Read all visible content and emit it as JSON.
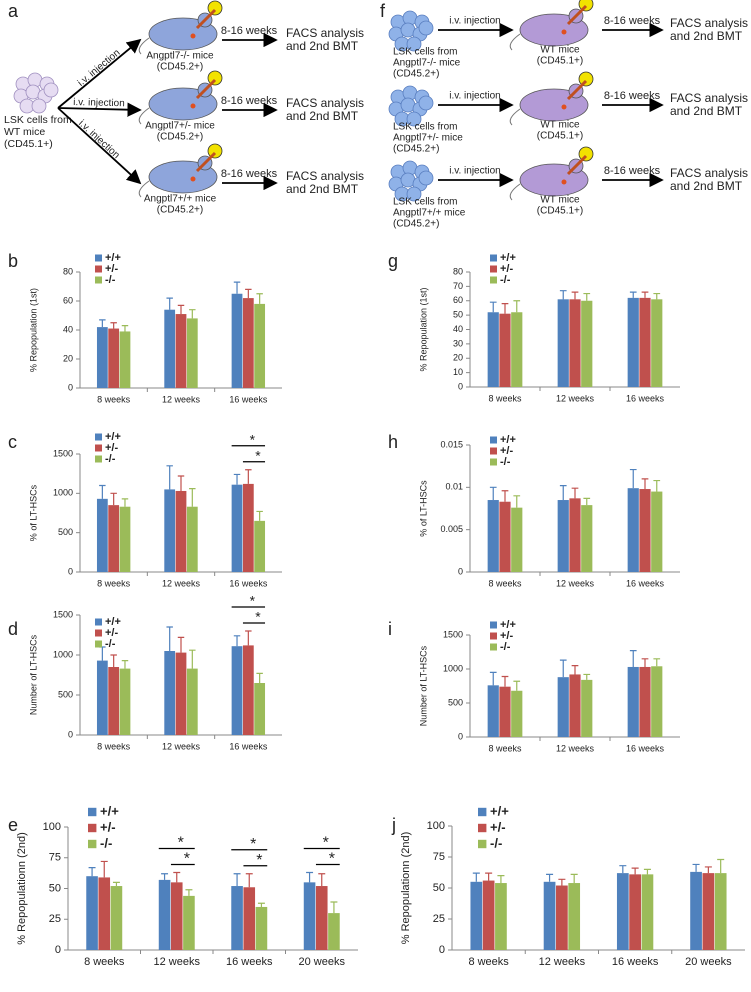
{
  "diagrams": [
    {
      "label": "a",
      "source": [
        "LSK cells from",
        "WT mice",
        "(CD45.1+)"
      ],
      "branches": [
        {
          "route": "i.v. injection",
          "recipient": [
            "Angptl7-/- mice",
            "(CD45.2+)"
          ],
          "time": "8-16 weeks",
          "outcome": [
            "FACS analysis",
            "and 2nd BMT"
          ]
        },
        {
          "route": "i.v. injection",
          "recipient": [
            "Angptl7+/- mice",
            "(CD45.2+)"
          ],
          "time": "8-16 weeks",
          "outcome": [
            "FACS analysis",
            "and 2nd BMT"
          ]
        },
        {
          "route": "i.v. injection",
          "recipient": [
            "Angptl7+/+ mice",
            "(CD45.2+)"
          ],
          "time": "8-16 weeks",
          "outcome": [
            "FACS analysis",
            "and 2nd BMT"
          ]
        }
      ]
    },
    {
      "label": "f",
      "rows": [
        {
          "source": [
            "LSK cells from",
            "Angptl7-/- mice",
            "(CD45.2+)"
          ],
          "route": "i.v. injection",
          "recipient": [
            "WT mice",
            "(CD45.1+)"
          ],
          "time": "8-16 weeks",
          "outcome": [
            "FACS analysis",
            "and 2nd BMT"
          ]
        },
        {
          "source": [
            "LSK cells from",
            "Angptl7+/- mice",
            "(CD45.2+)"
          ],
          "route": "i.v. injection",
          "recipient": [
            "WT mice",
            "(CD45.1+)"
          ],
          "time": "8-16 weeks",
          "outcome": [
            "FACS analysis",
            "and 2nd BMT"
          ]
        },
        {
          "source": [
            "LSK cells from",
            "Angptl7+/+ mice",
            "(CD45.2+)"
          ],
          "route": "i.v. injection",
          "recipient": [
            "WT mice",
            "(CD45.1+)"
          ],
          "time": "8-16 weeks",
          "outcome": [
            "FACS analysis",
            "and 2nd BMT"
          ]
        }
      ]
    }
  ],
  "chart_data": [
    {
      "type": "bar",
      "panel_label": "b",
      "y_label": "% Repopulation (1st)",
      "categories": [
        "8 weeks",
        "12 weeks",
        "16 weeks"
      ],
      "ylim": [
        0,
        80
      ],
      "yticks": [
        0,
        20,
        40,
        60,
        80
      ],
      "series": [
        {
          "name": "+/+",
          "color": "#4f81bd",
          "values": [
            42,
            54,
            65
          ],
          "errors": [
            5,
            8,
            8
          ]
        },
        {
          "name": "+/-",
          "color": "#c0504d",
          "values": [
            41,
            51,
            62
          ],
          "errors": [
            4,
            6,
            6
          ]
        },
        {
          "name": "-/-",
          "color": "#9bbb59",
          "values": [
            39,
            48,
            58
          ],
          "errors": [
            4,
            6,
            7
          ]
        }
      ]
    },
    {
      "type": "bar",
      "panel_label": "c",
      "y_label": "% of LT-HSCs",
      "categories": [
        "8 weeks",
        "12 weeks",
        "16 weeks"
      ],
      "ylim": [
        0,
        1500
      ],
      "yticks": [
        0,
        500,
        1000,
        1500
      ],
      "series": [
        {
          "name": "+/+",
          "color": "#4f81bd",
          "values": [
            930,
            1050,
            1110
          ],
          "errors": [
            170,
            300,
            130
          ]
        },
        {
          "name": "+/-",
          "color": "#c0504d",
          "values": [
            850,
            1030,
            1120
          ],
          "errors": [
            150,
            190,
            180
          ]
        },
        {
          "name": "-/-",
          "color": "#9bbb59",
          "values": [
            830,
            830,
            650
          ],
          "errors": [
            100,
            230,
            120
          ]
        }
      ],
      "significance": [
        {
          "category": "16 weeks",
          "from": "+/-",
          "to": "-/-",
          "label": "*"
        },
        {
          "category": "16 weeks",
          "from": "+/+",
          "to": "-/-",
          "label": "*"
        }
      ]
    },
    {
      "type": "bar",
      "panel_label": "d",
      "y_label": "Number of LT-HSCs",
      "categories": [
        "8 weeks",
        "12 weeks",
        "16 weeks"
      ],
      "ylim": [
        0,
        1500
      ],
      "yticks": [
        0,
        500,
        1000,
        1500
      ],
      "series": [
        {
          "name": "+/+",
          "color": "#4f81bd",
          "values": [
            930,
            1050,
            1110
          ],
          "errors": [
            170,
            300,
            130
          ]
        },
        {
          "name": "+/-",
          "color": "#c0504d",
          "values": [
            850,
            1030,
            1120
          ],
          "errors": [
            150,
            190,
            180
          ]
        },
        {
          "name": "-/-",
          "color": "#9bbb59",
          "values": [
            830,
            830,
            650
          ],
          "errors": [
            100,
            230,
            120
          ]
        }
      ],
      "significance": [
        {
          "category": "16 weeks",
          "from": "+/-",
          "to": "-/-",
          "label": "*"
        },
        {
          "category": "16 weeks",
          "from": "+/+",
          "to": "-/-",
          "label": "*"
        }
      ]
    },
    {
      "type": "bar",
      "panel_label": "e",
      "y_label": "% Repopulationn (2nd)",
      "categories": [
        "8 weeks",
        "12 weeks",
        "16 weeks",
        "20 weeks"
      ],
      "ylim": [
        0,
        100
      ],
      "yticks": [
        0,
        25,
        50,
        75,
        100
      ],
      "series": [
        {
          "name": "+/+",
          "color": "#4f81bd",
          "values": [
            60,
            57,
            52,
            55
          ],
          "errors": [
            7,
            5,
            10,
            8
          ]
        },
        {
          "name": "+/-",
          "color": "#c0504d",
          "values": [
            59,
            55,
            51,
            52
          ],
          "errors": [
            13,
            8,
            11,
            10
          ]
        },
        {
          "name": "-/-",
          "color": "#9bbb59",
          "values": [
            52,
            44,
            35,
            30
          ],
          "errors": [
            3,
            5,
            3,
            9
          ]
        }
      ],
      "significance": [
        {
          "category": "12 weeks",
          "from": "+/-",
          "to": "-/-",
          "label": "*"
        },
        {
          "category": "12 weeks",
          "from": "+/+",
          "to": "-/-",
          "label": "*"
        },
        {
          "category": "16 weeks",
          "from": "+/-",
          "to": "-/-",
          "label": "*"
        },
        {
          "category": "16 weeks",
          "from": "+/+",
          "to": "-/-",
          "label": "*"
        },
        {
          "category": "20 weeks",
          "from": "+/-",
          "to": "-/-",
          "label": "*"
        },
        {
          "category": "20 weeks",
          "from": "+/+",
          "to": "-/-",
          "label": "*"
        }
      ]
    },
    {
      "type": "bar",
      "panel_label": "g",
      "y_label": "% Repopulation (1st)",
      "categories": [
        "8 weeks",
        "12 weeks",
        "16 weeks"
      ],
      "ylim": [
        0,
        80
      ],
      "yticks": [
        0,
        10,
        20,
        30,
        40,
        50,
        60,
        70,
        80
      ],
      "series": [
        {
          "name": "+/+",
          "color": "#4f81bd",
          "values": [
            52,
            61,
            62
          ],
          "errors": [
            7,
            6,
            4
          ]
        },
        {
          "name": "+/-",
          "color": "#c0504d",
          "values": [
            51,
            61,
            62
          ],
          "errors": [
            7,
            5,
            4
          ]
        },
        {
          "name": "-/-",
          "color": "#9bbb59",
          "values": [
            52,
            60,
            61
          ],
          "errors": [
            8,
            5,
            4
          ]
        }
      ]
    },
    {
      "type": "bar",
      "panel_label": "h",
      "y_label": "% of LT-HSCs",
      "categories": [
        "8 weeks",
        "12 weeks",
        "16 weeks"
      ],
      "ylim": [
        0,
        0.015
      ],
      "yticks": [
        0,
        0.005,
        0.01,
        0.015
      ],
      "series": [
        {
          "name": "+/+",
          "color": "#4f81bd",
          "values": [
            0.0085,
            0.0085,
            0.0099
          ],
          "errors": [
            0.0015,
            0.0017,
            0.0022
          ]
        },
        {
          "name": "+/-",
          "color": "#c0504d",
          "values": [
            0.0083,
            0.0087,
            0.0098
          ],
          "errors": [
            0.0013,
            0.0012,
            0.0012
          ]
        },
        {
          "name": "-/-",
          "color": "#9bbb59",
          "values": [
            0.0076,
            0.0079,
            0.0095
          ],
          "errors": [
            0.0014,
            0.0008,
            0.0013
          ]
        }
      ]
    },
    {
      "type": "bar",
      "panel_label": "i",
      "y_label": "Number of LT-HSCs",
      "categories": [
        "8 weeks",
        "12 weeks",
        "16 weeks"
      ],
      "ylim": [
        0,
        1500
      ],
      "yticks": [
        0,
        500,
        1000,
        1500
      ],
      "series": [
        {
          "name": "+/+",
          "color": "#4f81bd",
          "values": [
            760,
            880,
            1030
          ],
          "errors": [
            190,
            250,
            240
          ]
        },
        {
          "name": "+/-",
          "color": "#c0504d",
          "values": [
            740,
            920,
            1030
          ],
          "errors": [
            150,
            130,
            120
          ]
        },
        {
          "name": "-/-",
          "color": "#9bbb59",
          "values": [
            680,
            840,
            1040
          ],
          "errors": [
            140,
            80,
            110
          ]
        }
      ]
    },
    {
      "type": "bar",
      "panel_label": "j",
      "y_label": "% Repopulationn (2nd)",
      "categories": [
        "8 weeks",
        "12 weeks",
        "16 weeks",
        "20 weeks"
      ],
      "ylim": [
        0,
        100
      ],
      "yticks": [
        0,
        25,
        50,
        75,
        100
      ],
      "series": [
        {
          "name": "+/+",
          "color": "#4f81bd",
          "values": [
            55,
            55,
            62,
            63
          ],
          "errors": [
            7,
            6,
            6,
            6
          ]
        },
        {
          "name": "+/-",
          "color": "#c0504d",
          "values": [
            56,
            52,
            61,
            62
          ],
          "errors": [
            6,
            5,
            5,
            5
          ]
        },
        {
          "name": "-/-",
          "color": "#9bbb59",
          "values": [
            54,
            54,
            61,
            62
          ],
          "errors": [
            6,
            7,
            4,
            11
          ]
        }
      ]
    }
  ]
}
